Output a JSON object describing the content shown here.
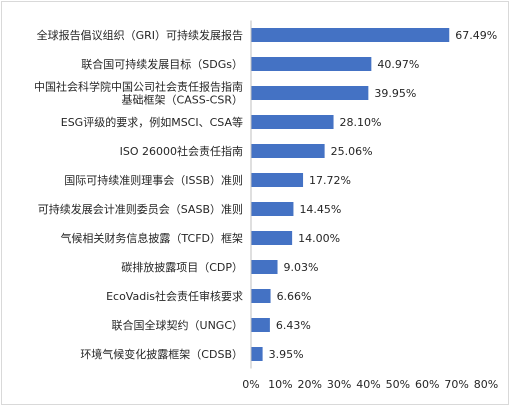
{
  "chart_data": {
    "type": "bar",
    "orientation": "horizontal",
    "categories": [
      [
        "全球报告倡议组织（GRI）可持续发展报告"
      ],
      [
        "联合国可持续发展目标（SDGs）"
      ],
      [
        "中国社会科学院中国公司社会责任报告指南",
        "基础框架（CASS-CSR）"
      ],
      [
        "ESG评级的要求，例如MSCI、CSA等"
      ],
      [
        "ISO 26000社会责任指南"
      ],
      [
        "国际可持续准则理事会（ISSB）准则"
      ],
      [
        "可持续发展会计准则委员会（SASB）准则"
      ],
      [
        "气候相关财务信息披露（TCFD）框架"
      ],
      [
        "碳排放披露项目（CDP）"
      ],
      [
        "EcoVadis社会责任审核要求"
      ],
      [
        "联合国全球契约（UNGC）"
      ],
      [
        "环境气候变化披露框架（CDSB）"
      ]
    ],
    "values": [
      67.49,
      40.97,
      39.95,
      28.1,
      25.06,
      17.72,
      14.45,
      14.0,
      9.03,
      6.66,
      6.43,
      3.95
    ],
    "value_labels": [
      "67.49%",
      "40.97%",
      "39.95%",
      "28.10%",
      "25.06%",
      "17.72%",
      "14.45%",
      "14.00%",
      "9.03%",
      "6.66%",
      "6.43%",
      "3.95%"
    ],
    "xlim": [
      0,
      80
    ],
    "xticks": [
      "0%",
      "10%",
      "20%",
      "30%",
      "40%",
      "50%",
      "60%",
      "70%",
      "80%"
    ],
    "bar_color": "#4472c4",
    "grid": false,
    "legend": "none"
  }
}
